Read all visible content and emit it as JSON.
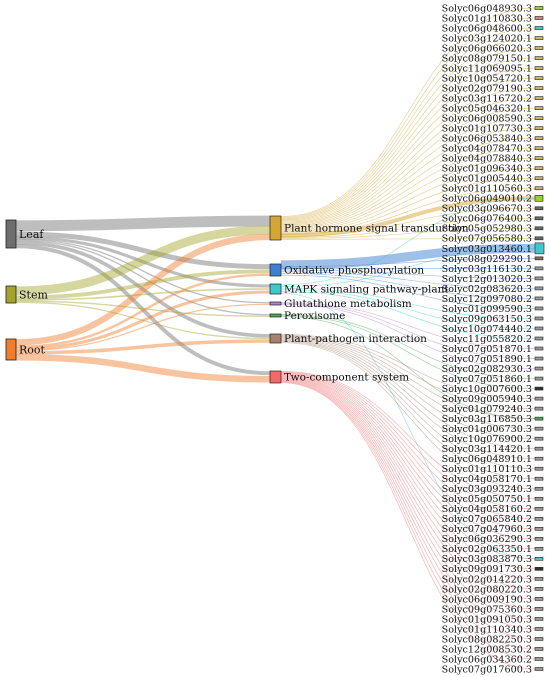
{
  "tissues": [
    {
      "name": "Leaf",
      "color": "#6e6e6e"
    },
    {
      "name": "Stem",
      "color": "#a3a32a"
    },
    {
      "name": "Root",
      "color": "#f07d2a"
    }
  ],
  "pathways": [
    {
      "name": "Plant hormone signal transduction",
      "color": "#d6a634"
    },
    {
      "name": "Oxidative phosphorylation",
      "color": "#3e7fd4"
    },
    {
      "name": "MAPK signaling pathway-plant",
      "color": "#3fc8c9"
    },
    {
      "name": "Glutathione metabolism",
      "color": "#b77fd6"
    },
    {
      "name": "Peroxisome",
      "color": "#4aa85a"
    },
    {
      "name": "Plant-pathogen interaction",
      "color": "#a8826e"
    },
    {
      "name": "Two-component system",
      "color": "#f06a6a"
    }
  ],
  "genes": [
    {
      "name": "Solyc06g048930.3",
      "color": "#9acd32"
    },
    {
      "name": "Solyc01g110830.3",
      "color": "#c98a84"
    },
    {
      "name": "Solyc06g048600.3",
      "color": "#3fc8c9"
    },
    {
      "name": "Solyc03g124020.1",
      "color": "#c9b46a"
    },
    {
      "name": "Solyc06g066020.3",
      "color": "#c9b46a"
    },
    {
      "name": "Solyc08g079150.1",
      "color": "#c9b46a"
    },
    {
      "name": "Solyc11g069095.1",
      "color": "#c9b46a"
    },
    {
      "name": "Solyc10g054720.1",
      "color": "#c9b46a"
    },
    {
      "name": "Solyc02g079190.3",
      "color": "#c9b46a"
    },
    {
      "name": "Solyc03g116720.2",
      "color": "#c9b46a"
    },
    {
      "name": "Solyc05g046320.1",
      "color": "#c9b46a"
    },
    {
      "name": "Solyc06g008590.3",
      "color": "#c9b46a"
    },
    {
      "name": "Solyc01g107730.3",
      "color": "#c9b46a"
    },
    {
      "name": "Solyc06g053840.3",
      "color": "#c9b46a"
    },
    {
      "name": "Solyc04g078470.3",
      "color": "#c9b46a"
    },
    {
      "name": "Solyc04g078840.3",
      "color": "#c9b46a"
    },
    {
      "name": "Solyc01g096340.3",
      "color": "#c9b46a"
    },
    {
      "name": "Solyc01g005440.3",
      "color": "#c9b46a"
    },
    {
      "name": "Solyc01g110560.3",
      "color": "#c9b46a"
    },
    {
      "name": "Solyc06g049010.2",
      "color": "#9acd32"
    },
    {
      "name": "Solyc03g096670.3",
      "color": "#6a6a6a"
    },
    {
      "name": "Solyc06g076400.3",
      "color": "#6a6a6a"
    },
    {
      "name": "Solyc05g052980.3",
      "color": "#6a6a6a"
    },
    {
      "name": "Solyc07g056580.3",
      "color": "#6a6a6a"
    },
    {
      "name": "Solyc03g013460.1",
      "color": "#3fc8c9"
    },
    {
      "name": "Solyc08g029290.1",
      "color": "#8a6a4a"
    },
    {
      "name": "Solyc03g116130.2",
      "color": "#999999"
    },
    {
      "name": "Solyc12g013020.3",
      "color": "#999999"
    },
    {
      "name": "Solyc02g083620.3",
      "color": "#999999"
    },
    {
      "name": "Solyc12g097080.2",
      "color": "#999999"
    },
    {
      "name": "Solyc01g099590.3",
      "color": "#999999"
    },
    {
      "name": "Solyc09g063150.3",
      "color": "#999999"
    },
    {
      "name": "Solyc10g074440.2",
      "color": "#999999"
    },
    {
      "name": "Solyc11g055820.2",
      "color": "#999999"
    },
    {
      "name": "Solyc07g051870.1",
      "color": "#999999"
    },
    {
      "name": "Solyc07g051890.1",
      "color": "#999999"
    },
    {
      "name": "Solyc02g082930.3",
      "color": "#999999"
    },
    {
      "name": "Solyc07g051860.1",
      "color": "#999999"
    },
    {
      "name": "Solyc10g007600.3",
      "color": "#333333"
    },
    {
      "name": "Solyc09g005940.3",
      "color": "#999999"
    },
    {
      "name": "Solyc01g079240.3",
      "color": "#999999"
    },
    {
      "name": "Solyc03g116850.3",
      "color": "#4aa85a"
    },
    {
      "name": "Solyc01g006730.3",
      "color": "#999999"
    },
    {
      "name": "Solyc10g076900.2",
      "color": "#999999"
    },
    {
      "name": "Solyc03g114420.1",
      "color": "#999999"
    },
    {
      "name": "Solyc06g048910.1",
      "color": "#999999"
    },
    {
      "name": "Solyc01g110110.3",
      "color": "#999999"
    },
    {
      "name": "Solyc04g058170.1",
      "color": "#999999"
    },
    {
      "name": "Solyc03g093240.3",
      "color": "#999999"
    },
    {
      "name": "Solyc05g050750.1",
      "color": "#999999"
    },
    {
      "name": "Solyc04g058160.2",
      "color": "#999999"
    },
    {
      "name": "Solyc07g065840.2",
      "color": "#999999"
    },
    {
      "name": "Solyc07g047960.3",
      "color": "#999999"
    },
    {
      "name": "Solyc06g036290.3",
      "color": "#999999"
    },
    {
      "name": "Solyc02g063350.1",
      "color": "#999999"
    },
    {
      "name": "Solyc03g083870.3",
      "color": "#3fc8c9"
    },
    {
      "name": "Solyc09g091730.3",
      "color": "#333333"
    },
    {
      "name": "Solyc02g014220.3",
      "color": "#999999"
    },
    {
      "name": "Solyc02g080220.3",
      "color": "#999999"
    },
    {
      "name": "Solyc06g009190.3",
      "color": "#999999"
    },
    {
      "name": "Solyc09g075360.3",
      "color": "#999999"
    },
    {
      "name": "Solyc01g091050.3",
      "color": "#999999"
    },
    {
      "name": "Solyc01g110340.3",
      "color": "#999999"
    },
    {
      "name": "Solyc08g082250.3",
      "color": "#999999"
    },
    {
      "name": "Solyc12g008530.2",
      "color": "#999999"
    },
    {
      "name": "Solyc06g034360.2",
      "color": "#999999"
    },
    {
      "name": "Solyc07g017600.3",
      "color": "#999999"
    }
  ],
  "tissue_links": [
    {
      "from": "Leaf",
      "to": "Plant hormone signal transduction",
      "value": 10
    },
    {
      "from": "Leaf",
      "to": "Oxidative phosphorylation",
      "value": 4
    },
    {
      "from": "Leaf",
      "to": "MAPK signaling pathway-plant",
      "value": 2
    },
    {
      "from": "Leaf",
      "to": "Glutathione metabolism",
      "value": 1
    },
    {
      "from": "Leaf",
      "to": "Peroxisome",
      "value": 1
    },
    {
      "from": "Leaf",
      "to": "Plant-pathogen interaction",
      "value": 3
    },
    {
      "from": "Leaf",
      "to": "Two-component system",
      "value": 3
    },
    {
      "from": "Stem",
      "to": "Plant hormone signal transduction",
      "value": 8
    },
    {
      "from": "Stem",
      "to": "Oxidative phosphorylation",
      "value": 3
    },
    {
      "from": "Stem",
      "to": "MAPK signaling pathway-plant",
      "value": 1
    },
    {
      "from": "Stem",
      "to": "Peroxisome",
      "value": 1
    },
    {
      "from": "Stem",
      "to": "Plant-pathogen interaction",
      "value": 1
    },
    {
      "from": "Root",
      "to": "Plant hormone signal transduction",
      "value": 6
    },
    {
      "from": "Root",
      "to": "Oxidative phosphorylation",
      "value": 2
    },
    {
      "from": "Root",
      "to": "MAPK signaling pathway-plant",
      "value": 2
    },
    {
      "from": "Root",
      "to": "Glutathione metabolism",
      "value": 1
    },
    {
      "from": "Root",
      "to": "Plant-pathogen interaction",
      "value": 3
    },
    {
      "from": "Root",
      "to": "Two-component system",
      "value": 5
    }
  ],
  "pathway_genes": {
    "Plant hormone signal transduction": [
      0,
      1,
      2,
      3,
      4,
      5,
      6,
      7,
      8,
      9,
      10,
      11,
      12,
      13,
      14,
      15,
      16,
      17,
      18,
      19,
      20,
      21,
      22,
      23
    ],
    "Oxidative phosphorylation": [
      24,
      25,
      26,
      27,
      28,
      29,
      30
    ],
    "MAPK signaling pathway-plant": [
      19,
      24,
      31,
      32,
      33,
      55
    ],
    "Glutathione metabolism": [
      34,
      35,
      36
    ],
    "Peroxisome": [
      37,
      38,
      41
    ],
    "Plant-pathogen interaction": [
      39,
      40,
      41,
      42,
      43,
      44,
      45,
      46,
      47,
      48
    ],
    "Two-component system": [
      49,
      50,
      51,
      52,
      53,
      54,
      55,
      56,
      57,
      58,
      59,
      60,
      61,
      62,
      63,
      64,
      65,
      66
    ]
  }
}
